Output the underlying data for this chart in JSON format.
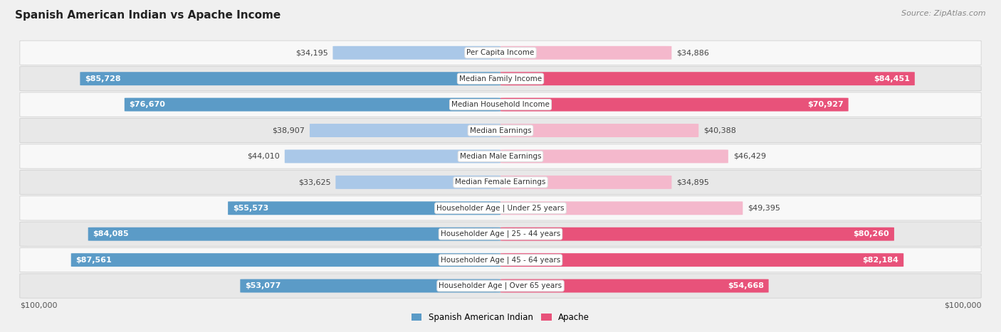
{
  "title": "Spanish American Indian vs Apache Income",
  "source": "Source: ZipAtlas.com",
  "categories": [
    "Per Capita Income",
    "Median Family Income",
    "Median Household Income",
    "Median Earnings",
    "Median Male Earnings",
    "Median Female Earnings",
    "Householder Age | Under 25 years",
    "Householder Age | 25 - 44 years",
    "Householder Age | 45 - 64 years",
    "Householder Age | Over 65 years"
  ],
  "left_values": [
    34195,
    85728,
    76670,
    38907,
    44010,
    33625,
    55573,
    84085,
    87561,
    53077
  ],
  "right_values": [
    34886,
    84451,
    70927,
    40388,
    46429,
    34895,
    49395,
    80260,
    82184,
    54668
  ],
  "left_labels": [
    "$34,195",
    "$85,728",
    "$76,670",
    "$38,907",
    "$44,010",
    "$33,625",
    "$55,573",
    "$84,085",
    "$87,561",
    "$53,077"
  ],
  "right_labels": [
    "$34,886",
    "$84,451",
    "$70,927",
    "$40,388",
    "$46,429",
    "$34,895",
    "$49,395",
    "$80,260",
    "$82,184",
    "$54,668"
  ],
  "left_color_light": "#aac8e8",
  "left_color_dark": "#5b9bc7",
  "right_color_light": "#f4b8cc",
  "right_color_dark": "#e8527a",
  "max_value": 100000,
  "legend_left": "Spanish American Indian",
  "legend_right": "Apache",
  "bg_color": "#f0f0f0",
  "row_bg_light": "#f8f8f8",
  "row_bg_dark": "#e8e8e8",
  "title_fontsize": 11,
  "source_fontsize": 8,
  "label_fontsize": 8,
  "cat_fontsize": 7.5,
  "inside_threshold": 50000
}
